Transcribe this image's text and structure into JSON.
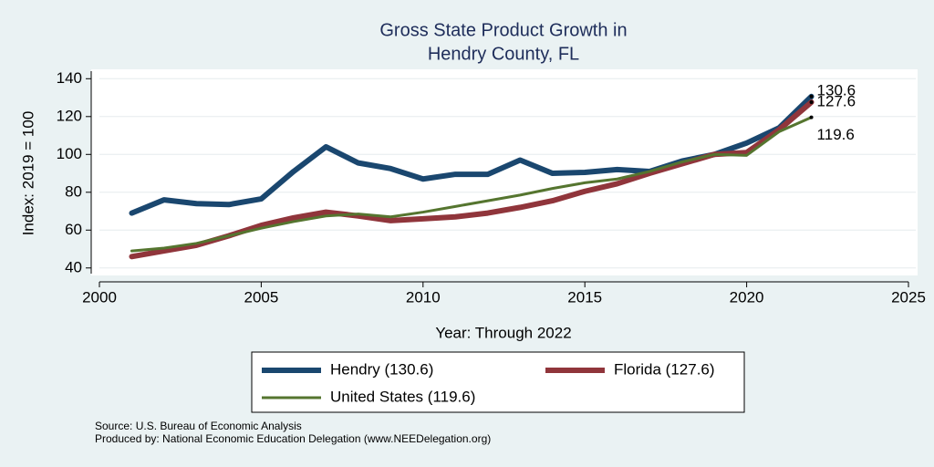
{
  "chart_data": {
    "type": "line",
    "title": [
      "Gross State Product Growth in",
      "Hendry County, FL"
    ],
    "x_label": "Year: Through 2022",
    "y_label": "Index: 2019 = 100",
    "x": [
      2001,
      2002,
      2003,
      2004,
      2005,
      2006,
      2007,
      2008,
      2009,
      2010,
      2011,
      2012,
      2013,
      2014,
      2015,
      2016,
      2017,
      2018,
      2019,
      2020,
      2021,
      2022
    ],
    "series": [
      {
        "name": "Hendry  (130.6)",
        "color": "#1a476f",
        "values": [
          69,
          76,
          74,
          73.5,
          76.5,
          91,
          104,
          95.5,
          92.5,
          87,
          89.5,
          89.5,
          97,
          90,
          90.5,
          92,
          91,
          96.5,
          100,
          106,
          114,
          130.6
        ]
      },
      {
        "name": "Florida (127.6)",
        "color": "#90353b",
        "values": [
          46,
          49,
          52,
          57,
          62.5,
          66.5,
          69.5,
          67.5,
          65,
          66,
          67,
          69,
          72,
          75.5,
          80.5,
          84.5,
          90,
          95,
          100,
          101,
          113,
          127.6
        ]
      },
      {
        "name": "United States (119.6)",
        "color": "#55752f",
        "values": [
          49,
          50.5,
          53,
          57,
          61,
          64.5,
          67.5,
          68.5,
          67,
          69.5,
          72.5,
          75.5,
          78.5,
          82,
          85,
          87,
          91,
          96,
          100,
          99.5,
          112,
          119.6
        ]
      }
    ],
    "xlim": [
      2000,
      2025
    ],
    "xticks": [
      2000,
      2005,
      2010,
      2015,
      2020,
      2025
    ],
    "ylim": [
      37,
      144
    ],
    "yticks": [
      40,
      60,
      80,
      100,
      120,
      140
    ],
    "grid": true,
    "notes": [
      "Source: U.S. Bureau of Economic Analysis",
      "Produced by: National Economic Education Delegation (www.NEEDelegation.org)"
    ]
  }
}
